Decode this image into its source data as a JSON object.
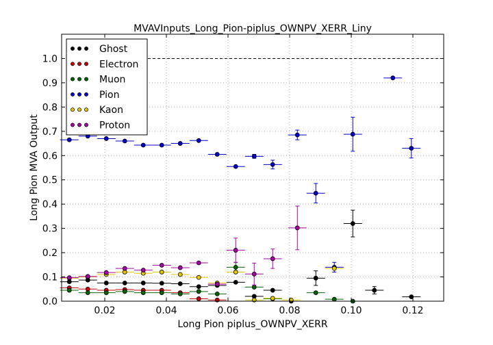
{
  "chart_data": {
    "type": "scatter",
    "title": "MVAVInputs_Long_Pion-piplus_OWNPV_XERR_Liny",
    "xlabel": "Long Pion piplus_OWNPV_XERR",
    "ylabel": "Long Pion MVA Output",
    "xlim": [
      0.006,
      0.13
    ],
    "ylim": [
      0.0,
      1.1
    ],
    "grid": true,
    "legend_position": "top-left",
    "xticks": [
      0.02,
      0.04,
      0.06,
      0.08,
      0.1,
      0.12
    ],
    "xtick_labels": [
      "0.02",
      "0.04",
      "0.06",
      "0.08",
      "0.10",
      "0.12"
    ],
    "yticks": [
      0.0,
      0.1,
      0.2,
      0.3,
      0.4,
      0.5,
      0.6,
      0.7,
      0.8,
      0.9,
      1.0
    ],
    "ytick_labels": [
      "0.0",
      "0.1",
      "0.2",
      "0.3",
      "0.4",
      "0.5",
      "0.6",
      "0.7",
      "0.8",
      "0.9",
      "1.0"
    ],
    "reference_line": {
      "y": 1.0,
      "style": "dashed",
      "color": "#000000"
    },
    "bin_half_width": 0.003,
    "series": [
      {
        "name": "Ghost",
        "color": "#000000",
        "points": [
          {
            "x": 0.0085,
            "y": 0.08
          },
          {
            "x": 0.0145,
            "y": 0.087
          },
          {
            "x": 0.0205,
            "y": 0.075
          },
          {
            "x": 0.0265,
            "y": 0.075
          },
          {
            "x": 0.0325,
            "y": 0.075
          },
          {
            "x": 0.0385,
            "y": 0.074
          },
          {
            "x": 0.0445,
            "y": 0.072
          },
          {
            "x": 0.0505,
            "y": 0.06
          },
          {
            "x": 0.0565,
            "y": 0.065
          },
          {
            "x": 0.0625,
            "y": 0.078
          },
          {
            "x": 0.0685,
            "y": 0.02
          },
          {
            "x": 0.0745,
            "y": 0.045
          },
          {
            "x": 0.0805,
            "y": 0.0
          },
          {
            "x": 0.0885,
            "y": 0.095,
            "err": 0.03
          },
          {
            "x": 0.1005,
            "y": 0.32,
            "err": 0.055
          },
          {
            "x": 0.1075,
            "y": 0.045,
            "err": 0.015
          },
          {
            "x": 0.1195,
            "y": 0.018
          }
        ]
      },
      {
        "name": "Electron",
        "color": "#cc0000",
        "points": [
          {
            "x": 0.0085,
            "y": 0.055
          },
          {
            "x": 0.0145,
            "y": 0.05
          },
          {
            "x": 0.0205,
            "y": 0.045
          },
          {
            "x": 0.0265,
            "y": 0.048
          },
          {
            "x": 0.0325,
            "y": 0.045
          },
          {
            "x": 0.0385,
            "y": 0.045
          },
          {
            "x": 0.0445,
            "y": 0.035
          },
          {
            "x": 0.0505,
            "y": 0.01
          },
          {
            "x": 0.0565,
            "y": 0.005
          }
        ]
      },
      {
        "name": "Muon",
        "color": "#006600",
        "points": [
          {
            "x": 0.0085,
            "y": 0.045
          },
          {
            "x": 0.0145,
            "y": 0.035
          },
          {
            "x": 0.0205,
            "y": 0.035
          },
          {
            "x": 0.0265,
            "y": 0.04
          },
          {
            "x": 0.0325,
            "y": 0.035
          },
          {
            "x": 0.0385,
            "y": 0.035
          },
          {
            "x": 0.0445,
            "y": 0.03
          },
          {
            "x": 0.0505,
            "y": 0.04
          },
          {
            "x": 0.0565,
            "y": 0.03
          },
          {
            "x": 0.0625,
            "y": 0.14,
            "err": 0.02
          },
          {
            "x": 0.0685,
            "y": 0.058
          },
          {
            "x": 0.0745,
            "y": 0.01
          },
          {
            "x": 0.0885,
            "y": 0.035
          },
          {
            "x": 0.0945,
            "y": 0.008
          },
          {
            "x": 0.1005,
            "y": 0.0
          }
        ]
      },
      {
        "name": "Pion",
        "color": "#0000cc",
        "points": [
          {
            "x": 0.0085,
            "y": 0.665
          },
          {
            "x": 0.0145,
            "y": 0.68
          },
          {
            "x": 0.0205,
            "y": 0.67
          },
          {
            "x": 0.0265,
            "y": 0.66
          },
          {
            "x": 0.0325,
            "y": 0.643
          },
          {
            "x": 0.0385,
            "y": 0.643
          },
          {
            "x": 0.0445,
            "y": 0.65
          },
          {
            "x": 0.0505,
            "y": 0.662
          },
          {
            "x": 0.0565,
            "y": 0.605
          },
          {
            "x": 0.0625,
            "y": 0.555
          },
          {
            "x": 0.0685,
            "y": 0.597,
            "err": 0.008
          },
          {
            "x": 0.0745,
            "y": 0.563,
            "err": 0.018
          },
          {
            "x": 0.0825,
            "y": 0.685,
            "err": 0.02
          },
          {
            "x": 0.0885,
            "y": 0.445,
            "err": 0.04
          },
          {
            "x": 0.0945,
            "y": 0.14,
            "err": 0.02
          },
          {
            "x": 0.1005,
            "y": 0.688,
            "err": 0.07
          },
          {
            "x": 0.1135,
            "y": 0.92
          },
          {
            "x": 0.1195,
            "y": 0.63,
            "err": 0.04
          }
        ]
      },
      {
        "name": "Kaon",
        "color": "#e6c800",
        "points": [
          {
            "x": 0.0085,
            "y": 0.095
          },
          {
            "x": 0.0145,
            "y": 0.1
          },
          {
            "x": 0.0205,
            "y": 0.11
          },
          {
            "x": 0.0265,
            "y": 0.12
          },
          {
            "x": 0.0325,
            "y": 0.115
          },
          {
            "x": 0.0385,
            "y": 0.12
          },
          {
            "x": 0.0445,
            "y": 0.11
          },
          {
            "x": 0.0505,
            "y": 0.098
          },
          {
            "x": 0.0565,
            "y": 0.075
          },
          {
            "x": 0.0625,
            "y": 0.12
          },
          {
            "x": 0.0685,
            "y": 0.005
          },
          {
            "x": 0.0745,
            "y": 0.012
          },
          {
            "x": 0.0805,
            "y": 0.005
          },
          {
            "x": 0.0945,
            "y": 0.135
          }
        ]
      },
      {
        "name": "Proton",
        "color": "#aa00aa",
        "points": [
          {
            "x": 0.0085,
            "y": 0.097
          },
          {
            "x": 0.0145,
            "y": 0.102
          },
          {
            "x": 0.0205,
            "y": 0.118
          },
          {
            "x": 0.0265,
            "y": 0.135
          },
          {
            "x": 0.0325,
            "y": 0.128
          },
          {
            "x": 0.0385,
            "y": 0.148
          },
          {
            "x": 0.0445,
            "y": 0.138
          },
          {
            "x": 0.0505,
            "y": 0.158
          },
          {
            "x": 0.0565,
            "y": 0.07
          },
          {
            "x": 0.0625,
            "y": 0.21,
            "err": 0.05
          },
          {
            "x": 0.0685,
            "y": 0.112,
            "err": 0.045
          },
          {
            "x": 0.0745,
            "y": 0.175,
            "err": 0.04
          },
          {
            "x": 0.0825,
            "y": 0.302,
            "err": 0.09
          }
        ]
      }
    ]
  }
}
